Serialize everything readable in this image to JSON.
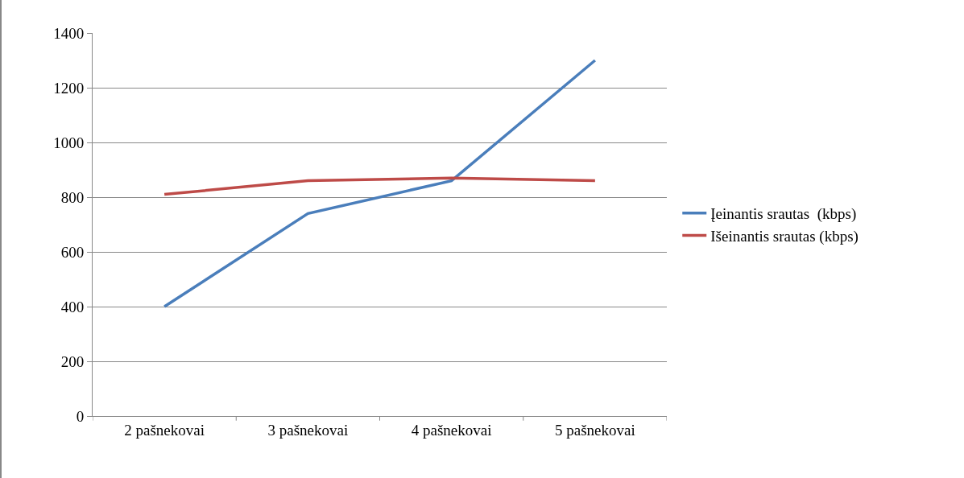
{
  "chart_data": {
    "type": "line",
    "categories": [
      "2 pašnekovai",
      "3 pašnekovai",
      "4 pašnekovai",
      "5 pašnekovai"
    ],
    "series": [
      {
        "name": "Įeinantis srautas  (kbps)",
        "color": "#4a7ebb",
        "values": [
          400,
          740,
          860,
          1300
        ]
      },
      {
        "name": "Išeinantis srautas (kbps)",
        "color": "#be4b48",
        "values": [
          810,
          860,
          870,
          860
        ]
      }
    ],
    "ylim": [
      0,
      1400
    ],
    "yticks": [
      0,
      200,
      400,
      600,
      800,
      1000,
      1200,
      1400
    ],
    "grid": "y",
    "legend": "right",
    "marker": "none",
    "line_style": "solid"
  }
}
